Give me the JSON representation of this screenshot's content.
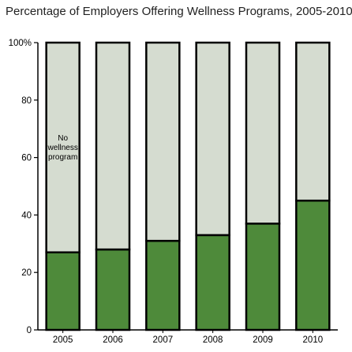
{
  "chart_data": {
    "type": "bar",
    "stacked": true,
    "title": "Percentage of Employers Offering Wellness Programs, 2005-2010",
    "xlabel": "",
    "ylabel": "",
    "categories": [
      "2005",
      "2006",
      "2007",
      "2008",
      "2009",
      "2010"
    ],
    "series": [
      {
        "values": [
          27,
          28,
          31,
          33,
          37,
          45
        ],
        "color": "#4e8a3a"
      },
      {
        "values": [
          73,
          72,
          69,
          67,
          63,
          55
        ],
        "color": "#d5dcd0"
      }
    ],
    "ylim": [
      0,
      100
    ],
    "yticks": [
      "0",
      "20",
      "40",
      "60",
      "80",
      "100%"
    ],
    "annotation": {
      "category": "2005",
      "series_index": 1,
      "lines": [
        "No",
        "wellness",
        "program"
      ]
    },
    "grid": false,
    "legend": "none"
  }
}
